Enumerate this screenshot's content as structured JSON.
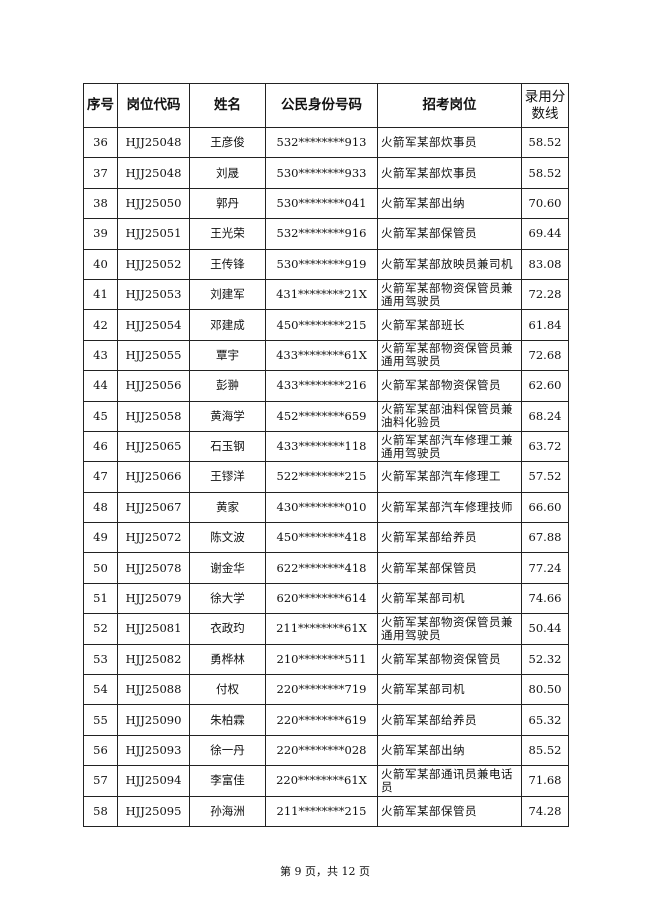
{
  "table": {
    "headers": [
      "序号",
      "岗位代码",
      "姓名",
      "公民身份号码",
      "招考岗位",
      "录用分数线"
    ],
    "rows": [
      [
        "36",
        "HJJ25048",
        "王彦俊",
        "532********913",
        "火箭军某部炊事员",
        "58.52"
      ],
      [
        "37",
        "HJJ25048",
        "刘晟",
        "530********933",
        "火箭军某部炊事员",
        "58.52"
      ],
      [
        "38",
        "HJJ25050",
        "郭丹",
        "530********041",
        "火箭军某部出纳",
        "70.60"
      ],
      [
        "39",
        "HJJ25051",
        "王光荣",
        "532********916",
        "火箭军某部保管员",
        "69.44"
      ],
      [
        "40",
        "HJJ25052",
        "王传锋",
        "530********919",
        "火箭军某部放映员兼司机",
        "83.08"
      ],
      [
        "41",
        "HJJ25053",
        "刘建军",
        "431********21X",
        "火箭军某部物资保管员兼通用驾驶员",
        "72.28"
      ],
      [
        "42",
        "HJJ25054",
        "邓建成",
        "450********215",
        "火箭军某部班长",
        "61.84"
      ],
      [
        "43",
        "HJJ25055",
        "覃宇",
        "433********61X",
        "火箭军某部物资保管员兼通用驾驶员",
        "72.68"
      ],
      [
        "44",
        "HJJ25056",
        "彭翀",
        "433********216",
        "火箭军某部物资保管员",
        "62.60"
      ],
      [
        "45",
        "HJJ25058",
        "黄海学",
        "452********659",
        "火箭军某部油料保管员兼油料化验员",
        "68.24"
      ],
      [
        "46",
        "HJJ25065",
        "石玉钢",
        "433********118",
        "火箭军某部汽车修理工兼通用驾驶员",
        "63.72"
      ],
      [
        "47",
        "HJJ25066",
        "王镠洋",
        "522********215",
        "火箭军某部汽车修理工",
        "57.52"
      ],
      [
        "48",
        "HJJ25067",
        "黄家",
        "430********010",
        "火箭军某部汽车修理技师",
        "66.60"
      ],
      [
        "49",
        "HJJ25072",
        "陈文波",
        "450********418",
        "火箭军某部给养员",
        "67.88"
      ],
      [
        "50",
        "HJJ25078",
        "谢金华",
        "622********418",
        "火箭军某部保管员",
        "77.24"
      ],
      [
        "51",
        "HJJ25079",
        "徐大学",
        "620********614",
        "火箭军某部司机",
        "74.66"
      ],
      [
        "52",
        "HJJ25081",
        "衣政玓",
        "211********61X",
        "火箭军某部物资保管员兼通用驾驶员",
        "50.44"
      ],
      [
        "53",
        "HJJ25082",
        "勇桦林",
        "210********511",
        "火箭军某部物资保管员",
        "52.32"
      ],
      [
        "54",
        "HJJ25088",
        "付权",
        "220********719",
        "火箭军某部司机",
        "80.50"
      ],
      [
        "55",
        "HJJ25090",
        "朱柏霖",
        "220********619",
        "火箭军某部给养员",
        "65.32"
      ],
      [
        "56",
        "HJJ25093",
        "徐一丹",
        "220********028",
        "火箭军某部出纳",
        "85.52"
      ],
      [
        "57",
        "HJJ25094",
        "李富佳",
        "220********61X",
        "火箭军某部通讯员兼电话员",
        "71.68"
      ],
      [
        "58",
        "HJJ25095",
        "孙海洲",
        "211********215",
        "火箭军某部保管员",
        "74.28"
      ]
    ]
  },
  "footer": "第 9 页，共 12 页"
}
